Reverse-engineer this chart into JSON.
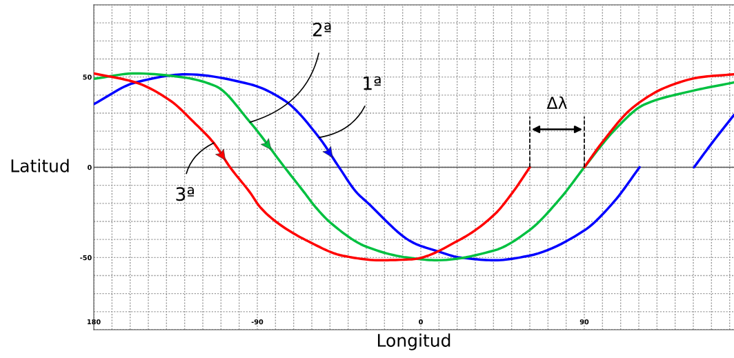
{
  "chart_data": {
    "type": "line",
    "xlabel": "Longitud",
    "ylabel": "Latitud",
    "xlim": [
      -180,
      172.4
    ],
    "ylim": [
      -90,
      90
    ],
    "xticks": [
      {
        "value": -180,
        "label": "180"
      },
      {
        "value": -170,
        "label": null
      },
      {
        "value": -160,
        "label": null
      },
      {
        "value": -150,
        "label": null
      },
      {
        "value": -140,
        "label": null
      },
      {
        "value": -130,
        "label": null
      },
      {
        "value": -120,
        "label": null
      },
      {
        "value": -110,
        "label": null
      },
      {
        "value": -100,
        "label": null
      },
      -90,
      {
        "value": -80,
        "label": null
      },
      {
        "value": -70,
        "label": null
      },
      {
        "value": -60,
        "label": null
      },
      {
        "value": -50,
        "label": null
      },
      {
        "value": -40,
        "label": null
      },
      {
        "value": -30,
        "label": null
      },
      {
        "value": -20,
        "label": null
      },
      {
        "value": -10,
        "label": null
      },
      0,
      {
        "value": 10,
        "label": null
      },
      {
        "value": 20,
        "label": null
      },
      {
        "value": 30,
        "label": null
      },
      {
        "value": 40,
        "label": null
      },
      {
        "value": 50,
        "label": null
      },
      {
        "value": 60,
        "label": null
      },
      {
        "value": 70,
        "label": null
      },
      {
        "value": 80,
        "label": null
      },
      90,
      {
        "value": 100,
        "label": null
      },
      {
        "value": 110,
        "label": null
      },
      {
        "value": 120,
        "label": null
      },
      {
        "value": 130,
        "label": null
      },
      {
        "value": 140,
        "label": null
      },
      {
        "value": 150,
        "label": null
      },
      {
        "value": 160,
        "label": null
      },
      {
        "value": 170,
        "label": null
      }
    ],
    "yticks": [
      {
        "value": -90,
        "label": null
      },
      {
        "value": -80,
        "label": null
      },
      {
        "value": -70,
        "label": null
      },
      {
        "value": -60,
        "label": null
      },
      -50,
      {
        "value": -40,
        "label": null
      },
      {
        "value": -30,
        "label": null
      },
      {
        "value": -20,
        "label": null
      },
      {
        "value": -10,
        "label": null
      },
      0,
      {
        "value": 10,
        "label": null
      },
      {
        "value": 20,
        "label": null
      },
      {
        "value": 30,
        "label": null
      },
      {
        "value": 40,
        "label": null
      },
      50,
      {
        "value": 60,
        "label": null
      },
      {
        "value": 70,
        "label": null
      },
      {
        "value": 80,
        "label": null
      },
      {
        "value": 90,
        "label": null
      }
    ],
    "grid": true,
    "series": [
      {
        "color": "#0000ff",
        "x": [
          -180,
          -157,
          -129,
          -94,
          -75,
          -56,
          -45,
          -35.3,
          -30,
          -3.8,
          7.6,
          21.7,
          40.7,
          59.6,
          90,
          106.4,
          120.4,
          135,
          150.4,
          160.7,
          172.4
        ],
        "values": [
          35,
          47,
          51.5,
          46,
          37,
          16.5,
          0,
          -14,
          -19,
          -42,
          -46,
          -50,
          -51.5,
          -49,
          -35,
          -19,
          0,
          null,
          0,
          14,
          29
        ]
      },
      {
        "color": "#00c040",
        "x": [
          -180,
          -157,
          -132,
          -113,
          -94,
          -75,
          -64.5,
          -58,
          -49.4,
          -30,
          -7.6,
          8.8,
          40.7,
          59.6,
          77,
          90,
          107.5,
          122.7,
          148,
          172.4
        ],
        "values": [
          49,
          52,
          50,
          45,
          25,
          0,
          -13.5,
          -22,
          -31,
          -44,
          -50,
          -51.5,
          -46,
          -35,
          -17,
          0,
          21.5,
          34.6,
          42,
          47
        ]
      },
      {
        "color": "#ff0000",
        "x": [
          -180,
          -157,
          -138,
          -125,
          -114,
          -105,
          -94,
          -88.5,
          -78.6,
          -62,
          -43,
          -22.8,
          -5,
          21.7,
          40.7,
          50.5,
          60,
          75,
          90,
          100,
          116.6,
          135.6,
          154.6,
          172.4
        ],
        "values": [
          52,
          47,
          37,
          25,
          13.5,
          0,
          -14,
          -22,
          -31,
          -41,
          -49,
          -51.5,
          -51,
          -40,
          -26,
          -14,
          0,
          null,
          0,
          14,
          33,
          44.6,
          50,
          51.5
        ]
      }
    ],
    "ref_lines": [
      {
        "axis": "y",
        "value": 0,
        "color": "#555555"
      },
      {
        "axis": "x",
        "value": 60,
        "color": "#000000",
        "line_style": "dashed"
      },
      {
        "axis": "x",
        "value": 90,
        "color": "#000000",
        "line_style": "dashed"
      }
    ],
    "annotations": [
      {
        "text": "1ª",
        "x": -56,
        "y": 16.5
      },
      {
        "text": "2ª",
        "x": -94,
        "y": 25
      },
      {
        "text": "3ª",
        "x": -114,
        "y": 13.5
      },
      "Δλ"
    ]
  }
}
